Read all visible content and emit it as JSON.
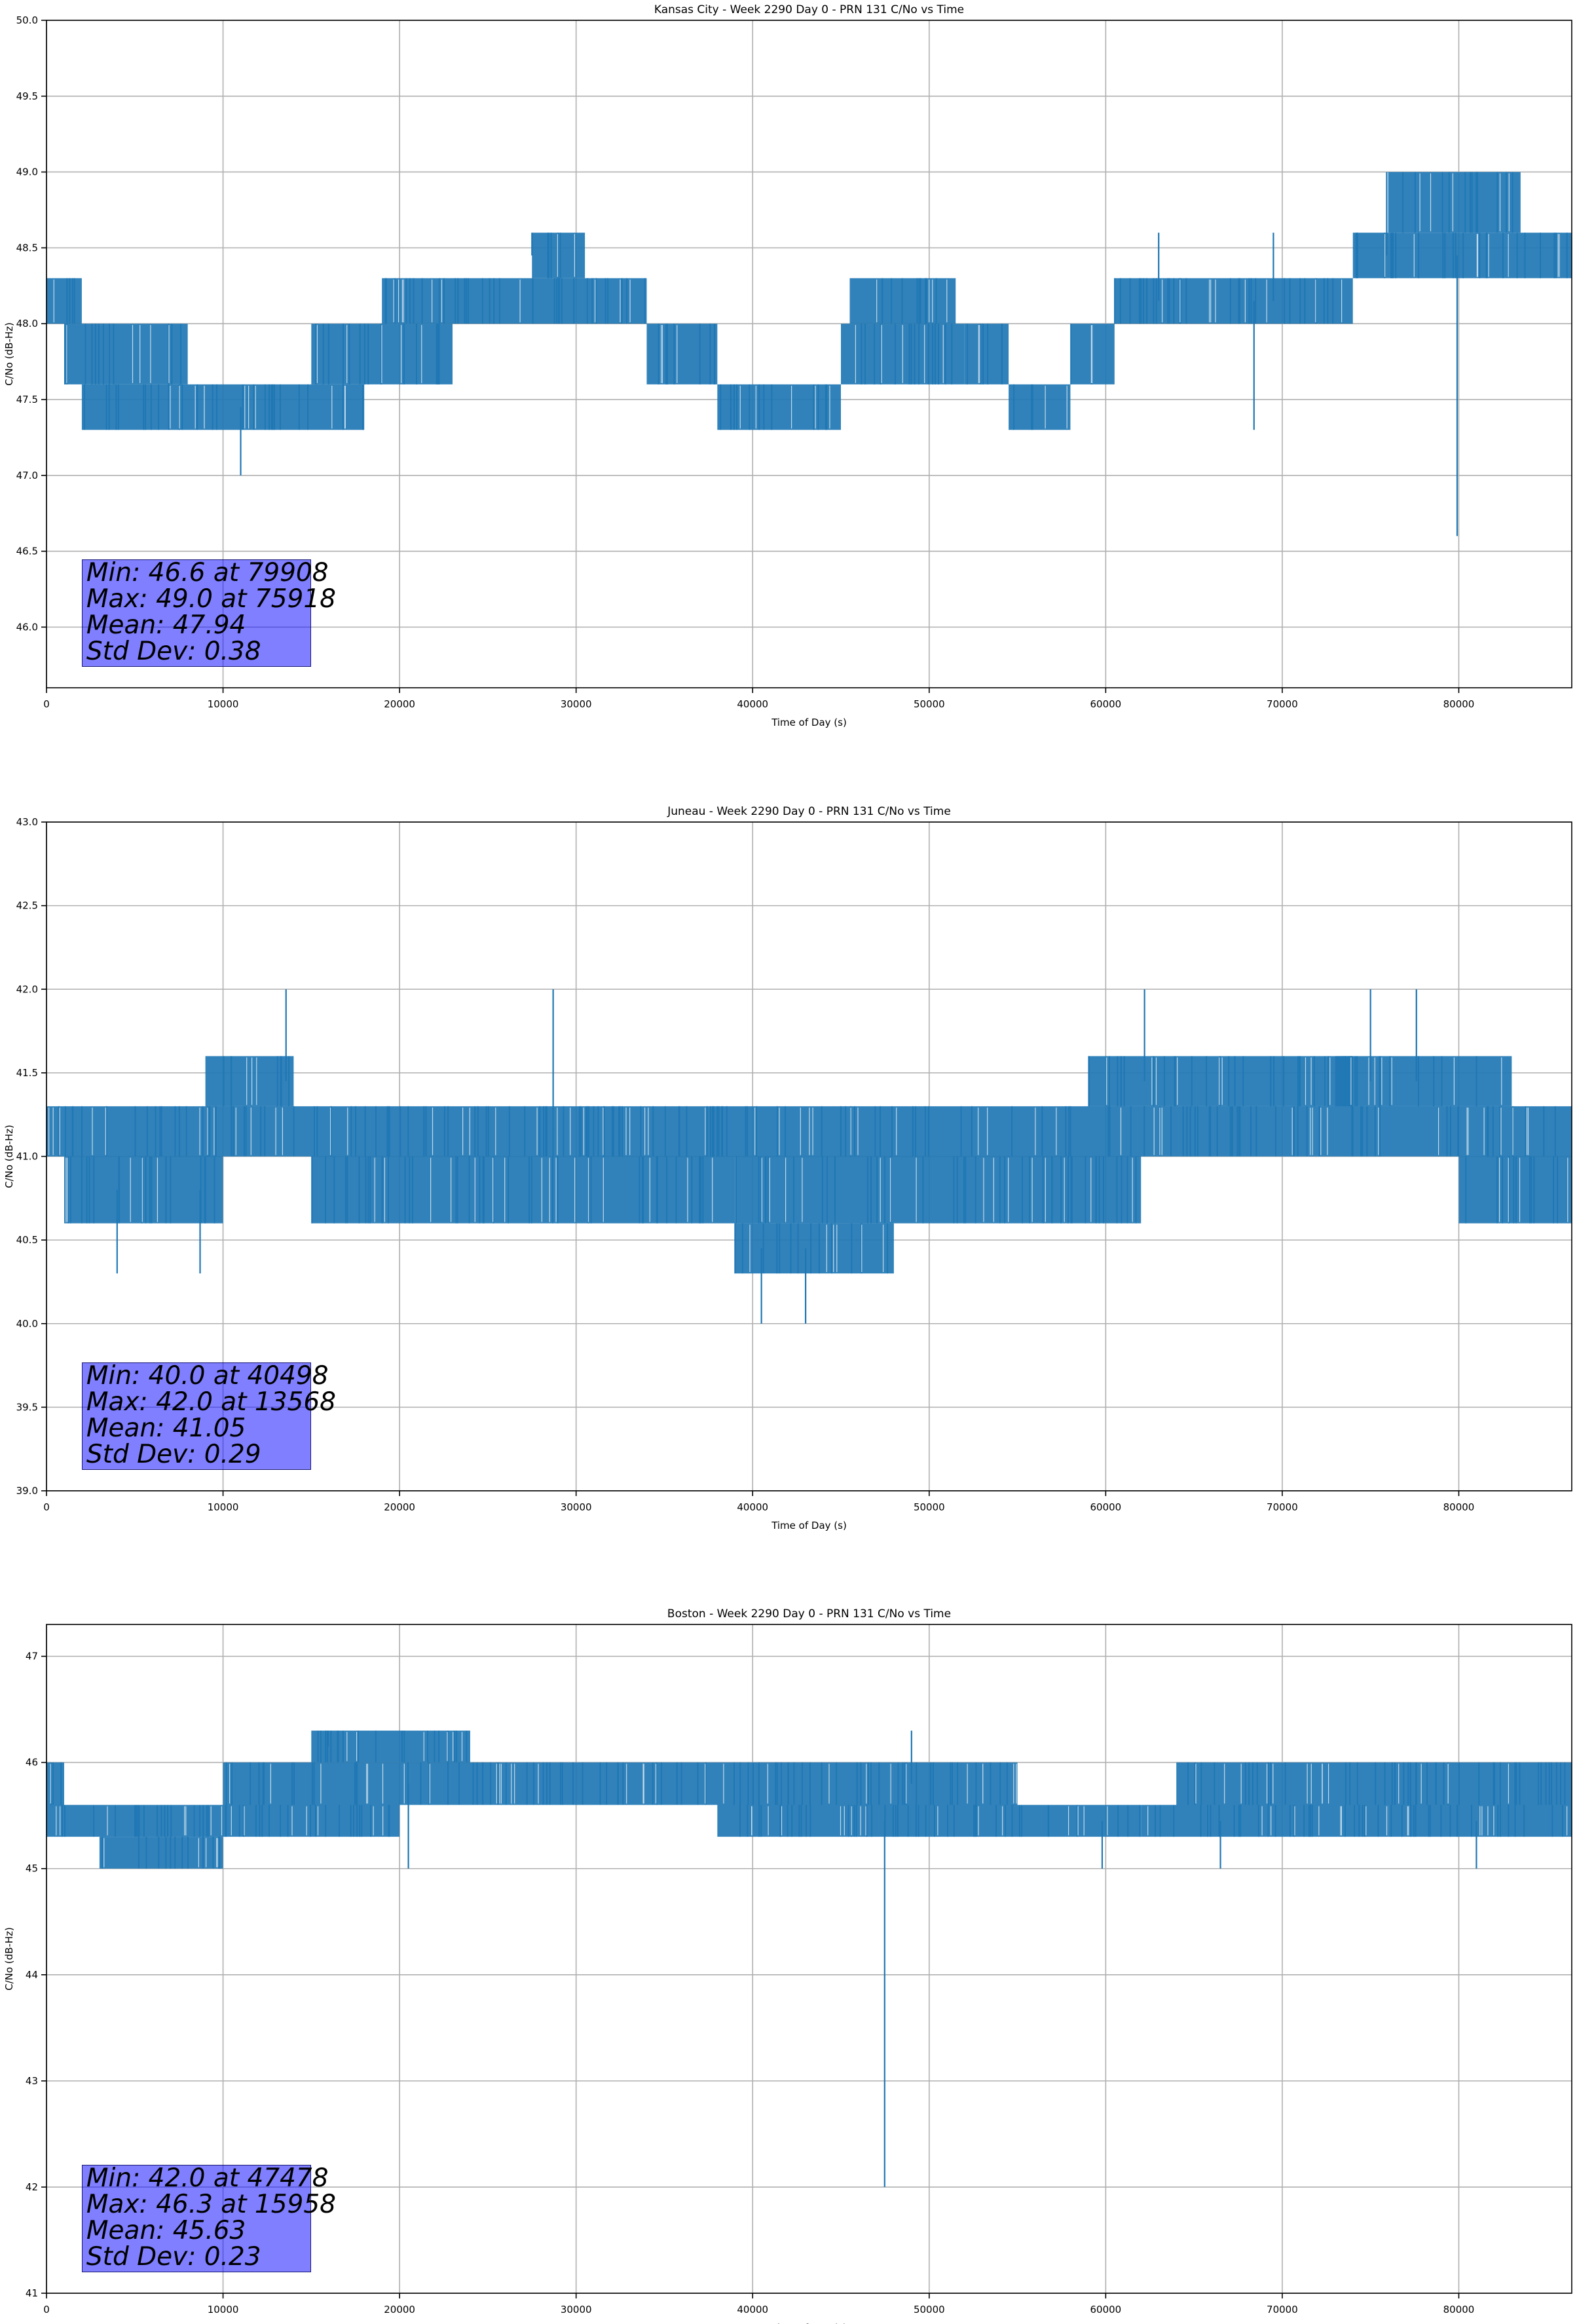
{
  "chart_data": [
    {
      "type": "line",
      "title": "Kansas City - Week 2290 Day 0 - PRN 131 C/No vs Time",
      "xlabel": "Time of Day (s)",
      "ylabel": "C/No (dB-Hz)",
      "xlim": [
        0,
        86400
      ],
      "ylim": [
        45.6,
        50.0
      ],
      "xticks": [
        0,
        10000,
        20000,
        30000,
        40000,
        50000,
        60000,
        70000,
        80000
      ],
      "yticks": [
        "46.0",
        "46.5",
        "47.0",
        "47.5",
        "48.0",
        "48.5",
        "49.0",
        "49.5",
        "50.0"
      ],
      "grid": true,
      "line_color": "#1f77b4",
      "segments": [
        {
          "x": [
            0,
            2000
          ],
          "low": 48.0,
          "high": 48.3
        },
        {
          "x": [
            1000,
            8000
          ],
          "low": 47.6,
          "high": 48.0
        },
        {
          "x": [
            2000,
            18000
          ],
          "low": 47.3,
          "high": 47.6
        },
        {
          "x": [
            15000,
            23000
          ],
          "low": 47.6,
          "high": 48.0
        },
        {
          "x": [
            19000,
            34000
          ],
          "low": 48.0,
          "high": 48.3
        },
        {
          "x": [
            27500,
            30500
          ],
          "low": 48.3,
          "high": 48.6
        },
        {
          "x": [
            34000,
            38000
          ],
          "low": 47.6,
          "high": 48.0
        },
        {
          "x": [
            38000,
            45000
          ],
          "low": 47.3,
          "high": 47.6
        },
        {
          "x": [
            45000,
            52000
          ],
          "low": 47.6,
          "high": 48.0
        },
        {
          "x": [
            45500,
            51500
          ],
          "low": 48.0,
          "high": 48.3
        },
        {
          "x": [
            52000,
            54500
          ],
          "low": 47.6,
          "high": 48.0
        },
        {
          "x": [
            54500,
            58000
          ],
          "low": 47.3,
          "high": 47.6
        },
        {
          "x": [
            58000,
            60500
          ],
          "low": 47.6,
          "high": 48.0
        },
        {
          "x": [
            60500,
            74000
          ],
          "low": 48.0,
          "high": 48.3
        },
        {
          "x": [
            74000,
            86400
          ],
          "low": 48.3,
          "high": 48.6
        },
        {
          "x": [
            76000,
            83500
          ],
          "low": 48.6,
          "high": 49.0
        }
      ],
      "spikes": [
        [
          11000,
          47.0
        ],
        [
          79908,
          46.6
        ],
        [
          68400,
          47.3
        ],
        [
          75918,
          49.0
        ],
        [
          27500,
          48.6
        ],
        [
          63000,
          48.6
        ],
        [
          69500,
          48.6
        ]
      ],
      "stats": {
        "min": "Min: 46.6 at 79908",
        "max": "Max: 49.0 at 75918",
        "mean": "Mean: 47.94",
        "std": "Std Dev: 0.38"
      }
    },
    {
      "type": "line",
      "title": "Juneau - Week 2290 Day 0 - PRN 131 C/No vs Time",
      "xlabel": "Time of Day (s)",
      "ylabel": "C/No (dB-Hz)",
      "xlim": [
        0,
        86400
      ],
      "ylim": [
        39.0,
        43.0
      ],
      "xticks": [
        0,
        10000,
        20000,
        30000,
        40000,
        50000,
        60000,
        70000,
        80000
      ],
      "yticks": [
        "39.0",
        "39.5",
        "40.0",
        "40.5",
        "41.0",
        "41.5",
        "42.0",
        "42.5",
        "43.0"
      ],
      "grid": true,
      "line_color": "#1f77b4",
      "segments": [
        {
          "x": [
            0,
            86400
          ],
          "low": 41.0,
          "high": 41.3
        },
        {
          "x": [
            1000,
            10000
          ],
          "low": 40.6,
          "high": 41.0
        },
        {
          "x": [
            9000,
            14000
          ],
          "low": 41.3,
          "high": 41.6
        },
        {
          "x": [
            15000,
            34000
          ],
          "low": 40.6,
          "high": 41.0
        },
        {
          "x": [
            34000,
            39000
          ],
          "low": 40.6,
          "high": 41.0
        },
        {
          "x": [
            39000,
            48000
          ],
          "low": 40.3,
          "high": 40.6
        },
        {
          "x": [
            39000,
            62000
          ],
          "low": 40.6,
          "high": 41.0
        },
        {
          "x": [
            59000,
            74000
          ],
          "low": 41.3,
          "high": 41.6
        },
        {
          "x": [
            73000,
            83000
          ],
          "low": 41.3,
          "high": 41.6
        },
        {
          "x": [
            80000,
            86400
          ],
          "low": 40.6,
          "high": 41.0
        }
      ],
      "spikes": [
        [
          13568,
          42.0
        ],
        [
          28700,
          42.0
        ],
        [
          40498,
          40.0
        ],
        [
          43000,
          40.0
        ],
        [
          62200,
          42.0
        ],
        [
          75000,
          42.0
        ],
        [
          77600,
          42.0
        ],
        [
          4000,
          40.3
        ],
        [
          8700,
          40.3
        ]
      ],
      "stats": {
        "min": "Min: 40.0 at 40498",
        "max": "Max: 42.0 at 13568",
        "mean": "Mean: 41.05",
        "std": "Std Dev: 0.29"
      }
    },
    {
      "type": "line",
      "title": "Boston - Week 2290 Day 0 - PRN 131 C/No vs Time",
      "xlabel": "Time of Day (s)",
      "ylabel": "C/No (dB-Hz)",
      "xlim": [
        0,
        86400
      ],
      "ylim": [
        41.0,
        47.3
      ],
      "xticks": [
        0,
        10000,
        20000,
        30000,
        40000,
        50000,
        60000,
        70000,
        80000
      ],
      "yticks": [
        "41",
        "42",
        "43",
        "44",
        "45",
        "46",
        "47"
      ],
      "grid": true,
      "line_color": "#1f77b4",
      "segments": [
        {
          "x": [
            0,
            1000
          ],
          "low": 45.6,
          "high": 46.0
        },
        {
          "x": [
            0,
            10000
          ],
          "low": 45.3,
          "high": 45.6
        },
        {
          "x": [
            3000,
            10000
          ],
          "low": 45.0,
          "high": 45.3
        },
        {
          "x": [
            10000,
            40000
          ],
          "low": 45.6,
          "high": 46.0
        },
        {
          "x": [
            10000,
            20000
          ],
          "low": 45.3,
          "high": 45.6
        },
        {
          "x": [
            15000,
            24000
          ],
          "low": 46.0,
          "high": 46.3
        },
        {
          "x": [
            38000,
            62000
          ],
          "low": 45.3,
          "high": 45.6
        },
        {
          "x": [
            40000,
            55000
          ],
          "low": 45.6,
          "high": 46.0
        },
        {
          "x": [
            62000,
            76000
          ],
          "low": 45.3,
          "high": 45.6
        },
        {
          "x": [
            64000,
            86400
          ],
          "low": 45.6,
          "high": 46.0
        },
        {
          "x": [
            76000,
            86400
          ],
          "low": 45.3,
          "high": 45.6
        }
      ],
      "spikes": [
        [
          47478,
          42.0
        ],
        [
          15958,
          46.3
        ],
        [
          49000,
          46.3
        ],
        [
          20500,
          45.0
        ],
        [
          59800,
          45.0
        ],
        [
          66500,
          45.0
        ],
        [
          81000,
          45.0
        ]
      ],
      "stats": {
        "min": "Min: 42.0 at 47478",
        "max": "Max: 46.3 at 15958",
        "mean": "Mean: 45.63",
        "std": "Std Dev: 0.23"
      }
    }
  ]
}
